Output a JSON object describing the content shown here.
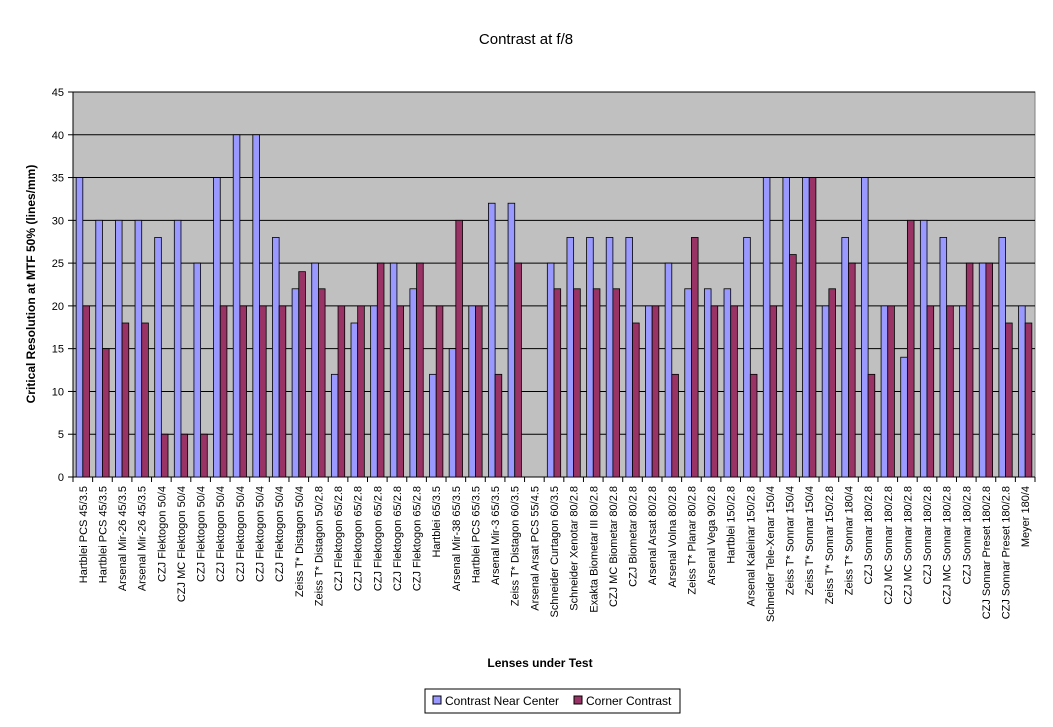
{
  "chart_data": {
    "type": "bar",
    "title": "Contrast at f/8",
    "xlabel": "Lenses under Test",
    "ylabel": "Critical Resolution at MTF 50% (lines/mm)",
    "ylim": [
      0,
      45
    ],
    "yticks": [
      0,
      5,
      10,
      15,
      20,
      25,
      30,
      35,
      40,
      45
    ],
    "grid": true,
    "legend_position": "bottom",
    "categories": [
      "Hartblei PCS 45/3.5",
      "Hartblei PCS 45/3.5",
      "Arsenal Mir-26 45/3.5",
      "Arsenal Mir-26 45/3.5",
      "CZJ Flektogon 50/4",
      "CZJ MC Flektogon 50/4",
      "CZJ Flektogon 50/4",
      "CZJ Flektogon 50/4",
      "CZJ Flektogon 50/4",
      "CZJ Flektogon 50/4",
      "CZJ Flektogon 50/4",
      "Zeiss T* Distagon 50/4",
      "Zeiss T* Distagon 50/2.8",
      "CZJ Flektogon 65/2.8",
      "CZJ Flektogon 65/2.8",
      "CZJ Flektogon 65/2.8",
      "CZJ Flektogon 65/2.8",
      "CZJ Flektogon 65/2.8",
      "Hartblei 65/3.5",
      "Arsenal Mir-38 65/3.5",
      "Hartblei PCS 65/3.5",
      "Arsenal Mir-3 65/3.5",
      "Zeiss T* Distagon 60/3.5",
      "Arsenal Arsat PCS 55/4.5",
      "Schneider Curtagon 60/3.5",
      "Schneider Xenotar 80/2.8",
      "Exakta Biometar III 80/2.8",
      "CZJ MC Biometar 80/2.8",
      "CZJ Biometar   80/2.8",
      "Arsenal Arsat 80/2.8",
      "Arsenal Volna 80/2.8",
      "Zeiss T* Planar 80/2.8",
      "Arsenal Vega 90/2.8",
      "Hartblei 150/2.8",
      "Arsenal Kaleinar 150/2.8",
      "Schneider Tele-Xenar 150/4",
      "Zeiss T* Sonnar 150/4",
      "Zeiss T* Sonnar 150/4",
      "Zeiss T* Sonnar 150/2.8",
      "Zeiss T* Sonnar 180/4",
      "CZJ Sonnar 180/2.8",
      "CZJ MC Sonnar 180/2.8",
      "CZJ MC Sonnar 180/2.8",
      "CZJ Sonnar 180/2.8",
      "CZJ MC Sonnar 180/2.8",
      "CZJ Sonnar 180/2.8",
      "CZJ Sonnar Preset 180/2.8",
      "CZJ Sonnar Preset 180/2.8",
      "Meyer   180/4"
    ],
    "series": [
      {
        "name": "Contrast Near Center",
        "color": "#9999FF",
        "values": [
          35,
          30,
          30,
          30,
          28,
          30,
          25,
          35,
          40,
          40,
          28,
          22,
          25,
          12,
          18,
          20,
          25,
          22,
          12,
          15,
          20,
          32,
          32,
          0,
          25,
          28,
          28,
          28,
          28,
          20,
          25,
          22,
          22,
          22,
          28,
          35,
          35,
          35,
          20,
          28,
          35,
          20,
          14,
          30,
          28,
          20,
          25,
          28,
          20
        ]
      },
      {
        "name": "Corner Contrast",
        "color": "#993366",
        "values": [
          20,
          15,
          18,
          18,
          5,
          5,
          5,
          20,
          20,
          20,
          20,
          24,
          22,
          20,
          20,
          25,
          20,
          25,
          20,
          30,
          20,
          12,
          25,
          0,
          22,
          22,
          22,
          22,
          18,
          20,
          12,
          28,
          20,
          20,
          12,
          20,
          26,
          35,
          22,
          25,
          12,
          20,
          30,
          20,
          20,
          25,
          25,
          18,
          18
        ]
      }
    ]
  },
  "colors": {
    "plot_background": "#C0C0C0",
    "gridline": "#000000",
    "bar_outline": "#000000"
  }
}
